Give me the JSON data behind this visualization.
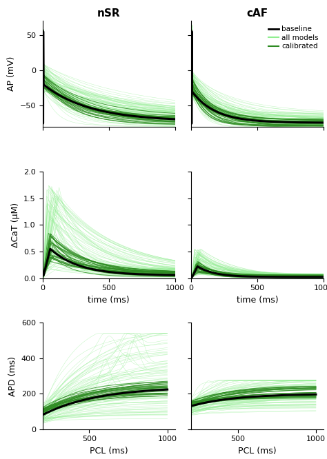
{
  "title_left": "nSR",
  "title_right": "cAF",
  "legend_labels": [
    "baseline",
    "all models",
    "calibrated"
  ],
  "light_green": "#90EE90",
  "dark_green": "#2E8B22",
  "black": "#000000",
  "ap_ylim": [
    -80,
    70
  ],
  "ap_yticks": [
    -50,
    0,
    50
  ],
  "cat_ylim": [
    0,
    2
  ],
  "cat_yticks": [
    0,
    0.5,
    1.0,
    1.5,
    2.0
  ],
  "apd_ylim": [
    0,
    600
  ],
  "apd_yticks": [
    0,
    200,
    400,
    600
  ],
  "time_xlim": [
    0,
    1000
  ],
  "time_xticks": [
    0,
    500,
    1000
  ],
  "pcl_xlim": [
    200,
    1050
  ],
  "pcl_xticks": [
    500,
    1000
  ],
  "ylabel_ap": "AP (mV)",
  "ylabel_cat": "ΔCaT (μM)",
  "ylabel_apd": "APD (ms)",
  "xlabel_time": "time (ms)",
  "xlabel_pcl": "PCL (ms)",
  "seed": 42
}
